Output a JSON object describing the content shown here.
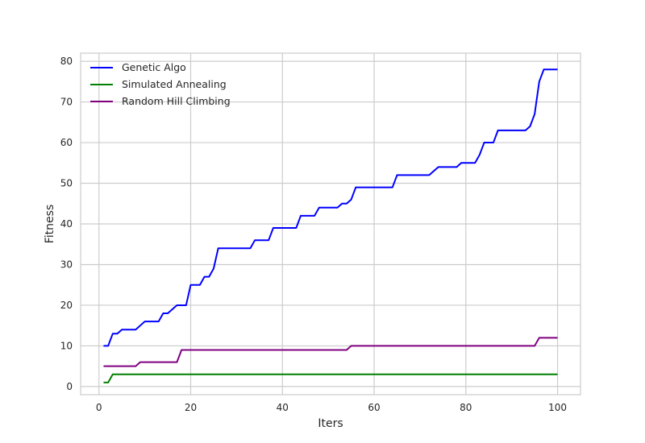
{
  "chart_data": {
    "type": "line",
    "xlabel": "Iters",
    "ylabel": "Fitness",
    "xlim": [
      -4,
      105
    ],
    "ylim": [
      -2,
      82
    ],
    "xticks": [
      0,
      20,
      40,
      60,
      80,
      100
    ],
    "yticks": [
      0,
      10,
      20,
      30,
      40,
      50,
      60,
      70,
      80
    ],
    "grid": true,
    "legend_position": "top-left",
    "series": [
      {
        "name": "Genetic Algo",
        "color": "#0000ff",
        "x": [
          1,
          2,
          3,
          4,
          5,
          6,
          7,
          8,
          9,
          10,
          11,
          12,
          13,
          14,
          15,
          16,
          17,
          18,
          19,
          20,
          21,
          22,
          23,
          24,
          25,
          26,
          27,
          28,
          29,
          30,
          31,
          32,
          33,
          34,
          35,
          36,
          37,
          38,
          39,
          40,
          41,
          42,
          43,
          44,
          45,
          46,
          47,
          48,
          49,
          50,
          51,
          52,
          53,
          54,
          55,
          56,
          57,
          58,
          59,
          60,
          61,
          62,
          63,
          64,
          65,
          66,
          67,
          68,
          69,
          70,
          71,
          72,
          73,
          74,
          75,
          76,
          77,
          78,
          79,
          80,
          81,
          82,
          83,
          84,
          85,
          86,
          87,
          88,
          89,
          90,
          91,
          92,
          93,
          94,
          95,
          96,
          97,
          98,
          99,
          100
        ],
        "values": [
          10,
          10,
          13,
          13,
          14,
          14,
          14,
          14,
          15,
          16,
          16,
          16,
          16,
          18,
          18,
          19,
          20,
          20,
          20,
          25,
          25,
          25,
          27,
          27,
          29,
          34,
          34,
          34,
          34,
          34,
          34,
          34,
          34,
          36,
          36,
          36,
          36,
          39,
          39,
          39,
          39,
          39,
          39,
          42,
          42,
          42,
          42,
          44,
          44,
          44,
          44,
          44,
          45,
          45,
          46,
          49,
          49,
          49,
          49,
          49,
          49,
          49,
          49,
          49,
          52,
          52,
          52,
          52,
          52,
          52,
          52,
          52,
          53,
          54,
          54,
          54,
          54,
          54,
          55,
          55,
          55,
          55,
          57,
          60,
          60,
          60,
          63,
          63,
          63,
          63,
          63,
          63,
          63,
          64,
          67,
          75,
          78,
          78,
          78,
          78
        ]
      },
      {
        "name": "Simulated Annealing",
        "color": "#008000",
        "x": [
          1,
          2,
          3,
          100
        ],
        "values": [
          1,
          1,
          3,
          3
        ]
      },
      {
        "name": "Random Hill Climbing",
        "color": "#800080",
        "x": [
          1,
          2,
          3,
          4,
          5,
          6,
          7,
          8,
          9,
          17,
          18,
          53,
          54,
          55,
          95,
          96,
          97,
          98,
          99,
          100
        ],
        "values": [
          5,
          5,
          5,
          5,
          5,
          5,
          5,
          5,
          6,
          6,
          9,
          9,
          9,
          10,
          10,
          12,
          12,
          12,
          12,
          12
        ]
      }
    ]
  }
}
